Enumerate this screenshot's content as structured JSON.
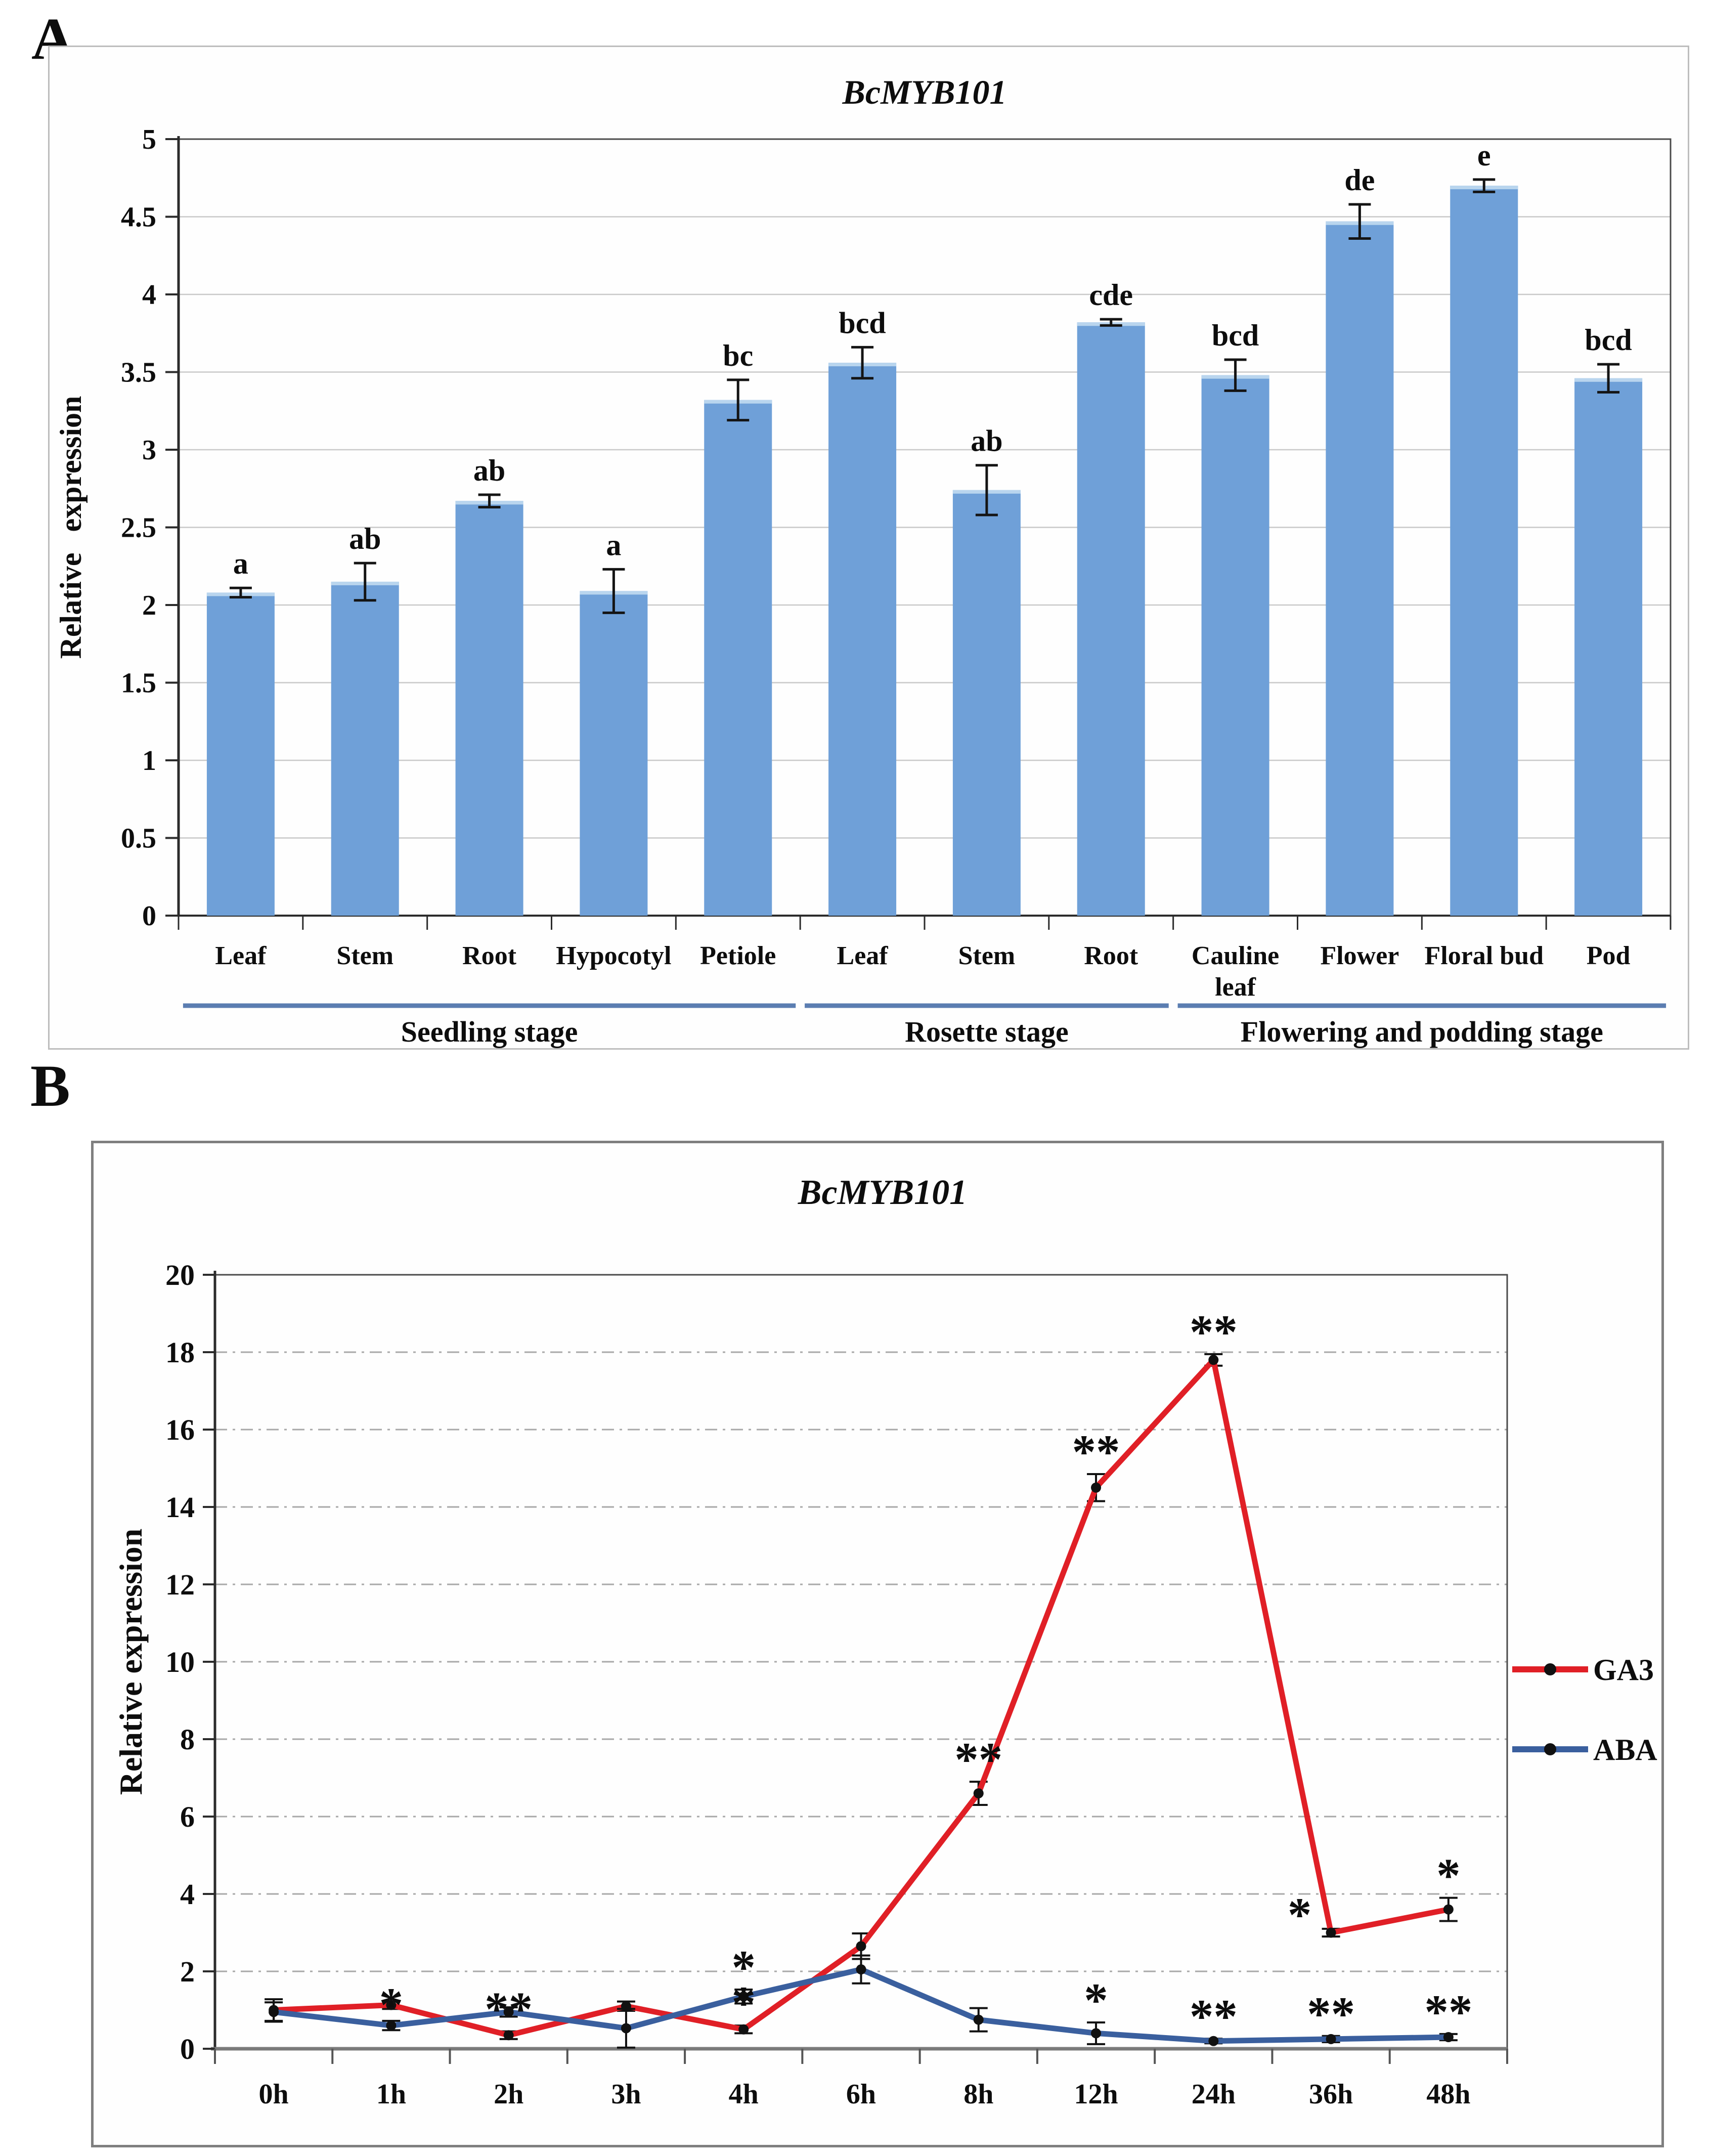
{
  "figure": {
    "panels": [
      {
        "letter": "A"
      },
      {
        "letter": "B"
      }
    ]
  },
  "chart_data": [
    {
      "type": "bar",
      "panel": "A",
      "title": "BcMYB101",
      "xlabel": "",
      "ylabel": "Relative expression",
      "ylim": [
        0,
        5
      ],
      "ytick_step": 0.5,
      "yticks": [
        "0",
        "0.5",
        "1",
        "1.5",
        "2",
        "2.5",
        "3",
        "3.5",
        "4",
        "4.5",
        "5"
      ],
      "grid": "solid horizontal lines every 0.5, light gray, plot area fully framed",
      "legend_position": "none",
      "bar_color": "#6FA0D8",
      "bar_cap_color": "#B9D5EE",
      "categories": [
        "Leaf",
        "Stem",
        "Root",
        "Hypocotyl",
        "Petiole",
        "Leaf",
        "Stem",
        "Root",
        "Cauline leaf",
        "Flower",
        "Floral bud",
        "Pod"
      ],
      "category_lines": [
        [
          "Leaf"
        ],
        [
          "Stem"
        ],
        [
          "Root"
        ],
        [
          "Hypocotyl"
        ],
        [
          "Petiole"
        ],
        [
          "Leaf"
        ],
        [
          "Stem"
        ],
        [
          "Root"
        ],
        [
          "Cauline",
          "leaf"
        ],
        [
          "Flower"
        ],
        [
          "Floral bud"
        ],
        [
          "Pod"
        ]
      ],
      "values": [
        2.08,
        2.15,
        2.67,
        2.09,
        3.32,
        3.56,
        2.74,
        3.82,
        3.48,
        4.47,
        4.7,
        3.46
      ],
      "errors": [
        0.03,
        0.12,
        0.04,
        0.14,
        0.13,
        0.1,
        0.16,
        0.02,
        0.1,
        0.11,
        0.04,
        0.09
      ],
      "sig_letters": [
        "a",
        "ab",
        "ab",
        "a",
        "bc",
        "bcd",
        "ab",
        "cde",
        "bcd",
        "de",
        "e",
        "bcd"
      ],
      "groups": [
        {
          "label": "Seedling stage",
          "from": 0,
          "to": 4
        },
        {
          "label": "Rosette stage",
          "from": 5,
          "to": 7
        },
        {
          "label": "Flowering and podding stage",
          "from": 8,
          "to": 11
        }
      ],
      "group_line_color": "#5B7DB1"
    },
    {
      "type": "line",
      "panel": "B",
      "title": "BcMYB101",
      "xlabel": "",
      "ylabel": "Relative expression",
      "ylim": [
        0,
        20
      ],
      "ytick_step": 2,
      "yticks": [
        "0",
        "2",
        "4",
        "6",
        "8",
        "10",
        "12",
        "14",
        "16",
        "18",
        "20"
      ],
      "grid": "dash-dot horizontal lines every 2, gray, plot area fully framed",
      "legend_position": "right outside plot",
      "x": [
        "0h",
        "1h",
        "2h",
        "3h",
        "4h",
        "6h",
        "8h",
        "12h",
        "24h",
        "36h",
        "48h"
      ],
      "series": [
        {
          "name": "GA3",
          "color": "#E01F26",
          "values": [
            1.0,
            1.13,
            0.35,
            1.1,
            0.5,
            2.65,
            6.6,
            14.5,
            17.8,
            3.0,
            3.6
          ],
          "errors": [
            0.28,
            0.1,
            0.1,
            0.12,
            0.1,
            0.33,
            0.3,
            0.35,
            0.15,
            0.1,
            0.3
          ]
        },
        {
          "name": "ABA",
          "color": "#3A5F9E",
          "values": [
            0.95,
            0.6,
            0.95,
            0.53,
            1.35,
            2.05,
            0.75,
            0.4,
            0.2,
            0.25,
            0.3
          ],
          "errors": [
            0.25,
            0.12,
            0.12,
            0.5,
            0.18,
            0.36,
            0.3,
            0.28,
            0.06,
            0.08,
            0.08
          ]
        }
      ],
      "annotations": [
        {
          "series": 0,
          "i": 2,
          "text": "**"
        },
        {
          "series": 0,
          "i": 4,
          "text": "*"
        },
        {
          "series": 0,
          "i": 6,
          "text": "**"
        },
        {
          "series": 0,
          "i": 7,
          "text": "**"
        },
        {
          "series": 0,
          "i": 8,
          "text": "**"
        },
        {
          "series": 0,
          "i": 9,
          "text": "*",
          "dx": -62,
          "dy": 16
        },
        {
          "series": 0,
          "i": 10,
          "text": "*"
        },
        {
          "series": 1,
          "i": 1,
          "text": "*",
          "dy": 12
        },
        {
          "series": 1,
          "i": 4,
          "text": "*"
        },
        {
          "series": 1,
          "i": 7,
          "text": "*"
        },
        {
          "series": 1,
          "i": 8,
          "text": "**"
        },
        {
          "series": 1,
          "i": 9,
          "text": "**"
        },
        {
          "series": 1,
          "i": 10,
          "text": "**"
        }
      ],
      "marker_color": "#111111",
      "error_bar_color": "#111111"
    }
  ]
}
